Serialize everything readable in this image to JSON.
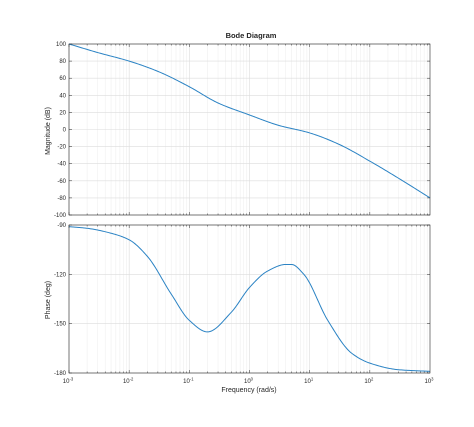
{
  "chart_data": [
    {
      "type": "line",
      "title": "Bode Diagram",
      "xlabel": "",
      "ylabel": "Magnitude (dB)",
      "xscale": "log",
      "xlim": [
        0.001,
        1000
      ],
      "ylim": [
        -100,
        100
      ],
      "grid": true,
      "yticks": [
        "100",
        "80",
        "60",
        "40",
        "20",
        "0",
        "-20",
        "-40",
        "-60",
        "-80",
        "-100"
      ],
      "line_color": "#2b83c4",
      "series": [
        {
          "x": [
            0.001,
            0.003,
            0.01,
            0.03,
            0.1,
            0.3,
            1,
            3,
            10,
            30,
            100,
            300,
            1000
          ],
          "y": [
            100,
            90,
            80,
            68,
            50,
            31,
            17,
            5,
            -4,
            -17,
            -37,
            -57,
            -80
          ]
        }
      ]
    },
    {
      "type": "line",
      "title": "",
      "xlabel": "Frequency  (rad/s)",
      "ylabel": "Phase (deg)",
      "xscale": "log",
      "xlim": [
        0.001,
        1000
      ],
      "ylim": [
        -180,
        -90
      ],
      "grid": true,
      "xticks": [
        {
          "base": "10",
          "exp": "-3"
        },
        {
          "base": "10",
          "exp": "-2"
        },
        {
          "base": "10",
          "exp": "-1"
        },
        {
          "base": "10",
          "exp": "0"
        },
        {
          "base": "10",
          "exp": "1"
        },
        {
          "base": "10",
          "exp": "2"
        },
        {
          "base": "10",
          "exp": "3"
        }
      ],
      "yticks": [
        "-90",
        "-120",
        "-150",
        "-180"
      ],
      "line_color": "#2b83c4",
      "series": [
        {
          "x": [
            0.001,
            0.002,
            0.005,
            0.01,
            0.02,
            0.05,
            0.1,
            0.2,
            0.5,
            1,
            2,
            4,
            5,
            8,
            20,
            50,
            100,
            300,
            1000
          ],
          "y": [
            -91,
            -92,
            -95,
            -99,
            -109,
            -132,
            -148,
            -155,
            -143,
            -128,
            -118,
            -114,
            -114,
            -120,
            -148,
            -168,
            -174,
            -178,
            -179
          ]
        }
      ]
    }
  ]
}
